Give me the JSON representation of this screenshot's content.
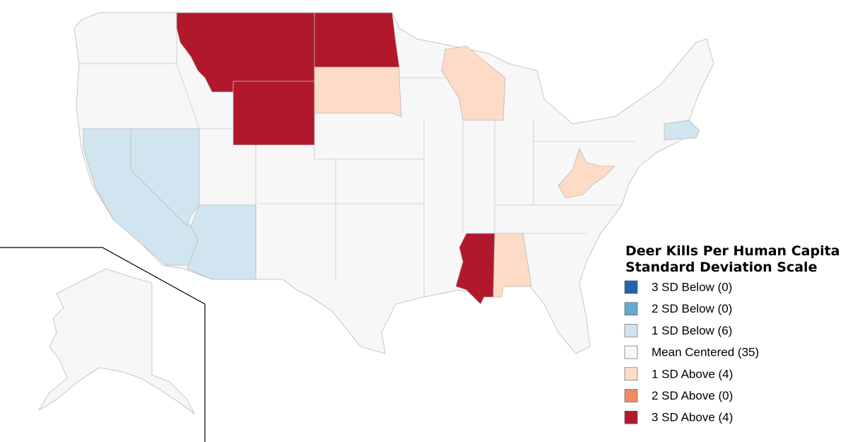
{
  "legend": {
    "title": [
      "Deer Kills Per Human Capita",
      "Standard Deviation Scale"
    ],
    "items": [
      {
        "label": "3 SD Below (0)",
        "color": "#2166ac"
      },
      {
        "label": "2 SD Below (0)",
        "color": "#67a9cf"
      },
      {
        "label": "1 SD Below (6)",
        "color": "#d1e5f0"
      },
      {
        "label": "Mean Centered (35)",
        "color": "#f7f7f7"
      },
      {
        "label": "1 SD Above (4)",
        "color": "#fddbc7"
      },
      {
        "label": "2 SD Above (0)",
        "color": "#ef8a62"
      },
      {
        "label": "3 SD Above (4)",
        "color": "#b2182b"
      }
    ]
  }
}
